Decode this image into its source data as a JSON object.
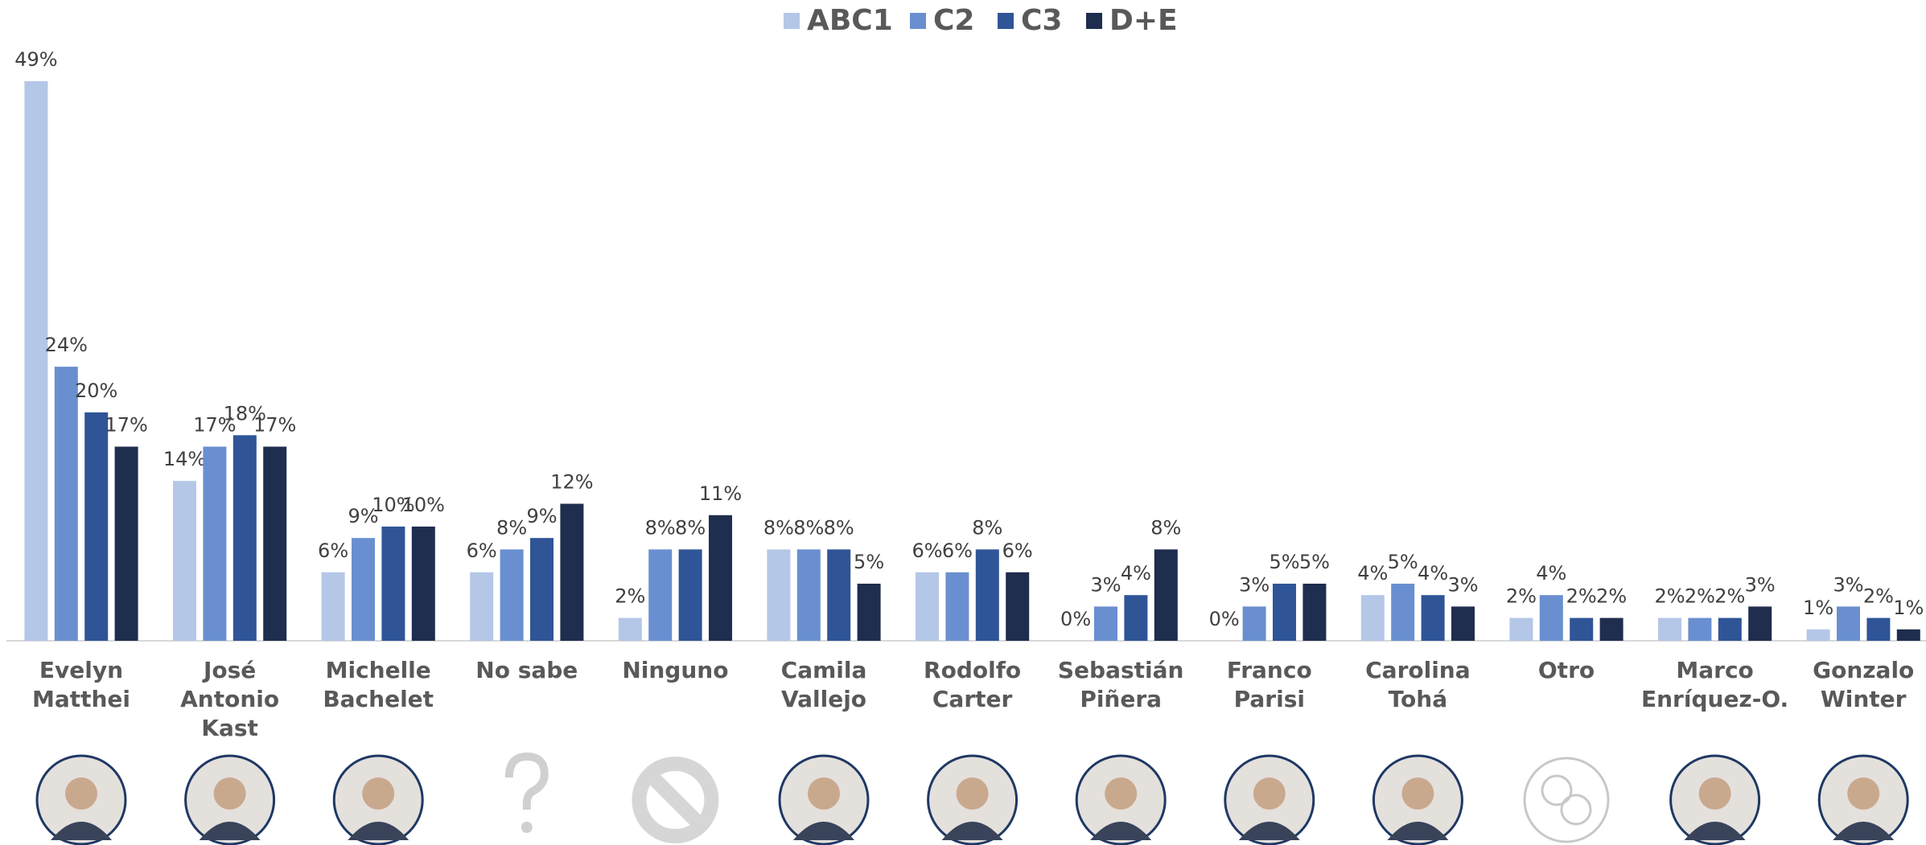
{
  "chart_data": {
    "type": "bar",
    "legend": "top",
    "categories": [
      "Evelyn\nMatthei",
      "José\nAntonio\nKast",
      "Michelle\nBachelet",
      "No sabe",
      "Ninguno",
      "Camila\nVallejo",
      "Rodolfo\nCarter",
      "Sebastián\nPiñera",
      "Franco\nParisi",
      "Carolina\nTohá",
      "Otro",
      "Marco\nEnríquez-O.",
      "Gonzalo\nWinter"
    ],
    "series": [
      {
        "name": "ABC1",
        "color": "#b4c7e7",
        "values": [
          49,
          14,
          6,
          6,
          2,
          8,
          6,
          0,
          0,
          4,
          2,
          2,
          1
        ],
        "value_labels": [
          "49%",
          "14%",
          "6%",
          "6%",
          "2%",
          "8%",
          "6%",
          "0%",
          "0%",
          "4%",
          "2%",
          "2%",
          "1%"
        ]
      },
      {
        "name": "C2",
        "color": "#6a8fd0",
        "values": [
          24,
          17,
          9,
          8,
          8,
          8,
          6,
          3,
          3,
          5,
          4,
          2,
          3
        ],
        "value_labels": [
          "24%",
          "17%",
          "9%",
          "8%",
          "8%",
          "8%",
          "6%",
          "3%",
          "3%",
          "5%",
          "4%",
          "2%",
          "3%"
        ]
      },
      {
        "name": "C3",
        "color": "#2f5597",
        "values": [
          20,
          18,
          10,
          9,
          8,
          8,
          8,
          4,
          5,
          4,
          2,
          2,
          2
        ],
        "value_labels": [
          "20%",
          "18%",
          "10%",
          "9%",
          "8%",
          "8%",
          "8%",
          "4%",
          "5%",
          "4%",
          "2%",
          "2%",
          "2%"
        ]
      },
      {
        "name": "D+E",
        "color": "#1f2d4e",
        "values": [
          17,
          17,
          10,
          12,
          11,
          5,
          6,
          8,
          5,
          3,
          2,
          3,
          1
        ],
        "value_labels": [
          "17%",
          "17%",
          "10%",
          "12%",
          "11%",
          "5%",
          "6%",
          "8%",
          "5%",
          "3%",
          "2%",
          "3%",
          "1%"
        ]
      }
    ]
  }
}
